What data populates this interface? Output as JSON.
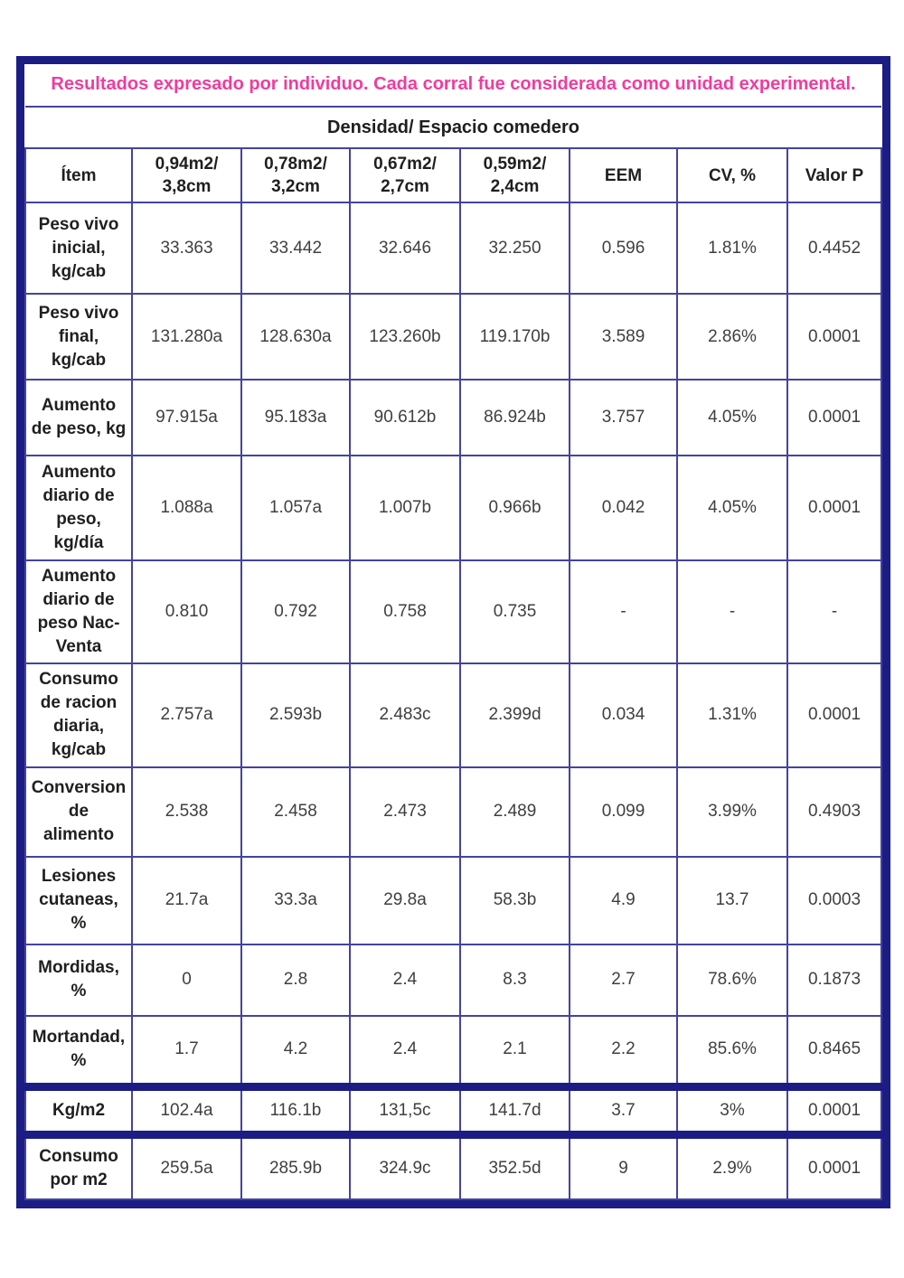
{
  "title": "Resultados expresado por individuo. Cada corral fue considerada como unidad experimental.",
  "group_header": "Densidad/ Espacio comedero",
  "columns": [
    "Ítem",
    "0,94m2/\n3,8cm",
    "0,78m2/\n3,2cm",
    "0,67m2/\n2,7cm",
    "0,59m2/\n2,4cm",
    "EEM",
    "CV, %",
    "Valor P"
  ],
  "rows": [
    {
      "label": "Peso vivo\ninicial,\nkg/cab",
      "values": [
        "33.363",
        "33.442",
        "32.646",
        "32.250",
        "0.596",
        "1.81%",
        "0.4452"
      ],
      "section": false
    },
    {
      "label": "Peso vivo\nfinal,\nkg/cab",
      "values": [
        "131.280a",
        "128.630a",
        "123.260b",
        "119.170b",
        "3.589",
        "2.86%",
        "0.0001"
      ],
      "section": false
    },
    {
      "label": "Aumento\nde peso, kg",
      "values": [
        "97.915a",
        "95.183a",
        "90.612b",
        "86.924b",
        "3.757",
        "4.05%",
        "0.0001"
      ],
      "section": false
    },
    {
      "label": "Aumento\ndiario de\npeso,\nkg/día",
      "values": [
        "1.088a",
        "1.057a",
        "1.007b",
        "0.966b",
        "0.042",
        "4.05%",
        "0.0001"
      ],
      "section": false
    },
    {
      "label": "Aumento\ndiario de\npeso Nac-\nVenta",
      "values": [
        "0.810",
        "0.792",
        "0.758",
        "0.735",
        "-",
        "-",
        "-"
      ],
      "section": false
    },
    {
      "label": "Consumo\nde racion\ndiaria,\nkg/cab",
      "values": [
        "2.757a",
        "2.593b",
        "2.483c",
        "2.399d",
        "0.034",
        "1.31%",
        "0.0001"
      ],
      "section": false
    },
    {
      "label": "Conversion\nde\nalimento",
      "values": [
        "2.538",
        "2.458",
        "2.473",
        "2.489",
        "0.099",
        "3.99%",
        "0.4903"
      ],
      "section": false
    },
    {
      "label": "Lesiones\ncutaneas,\n%",
      "values": [
        "21.7a",
        "33.3a",
        "29.8a",
        "58.3b",
        "4.9",
        "13.7",
        "0.0003"
      ],
      "section": false
    },
    {
      "label": "Mordidas,\n%",
      "values": [
        "0",
        "2.8",
        "2.4",
        "8.3",
        "2.7",
        "78.6%",
        "0.1873"
      ],
      "section": false
    },
    {
      "label": "Mortandad,\n%",
      "values": [
        "1.7",
        "4.2",
        "2.4",
        "2.1",
        "2.2",
        "85.6%",
        "0.8465"
      ],
      "section": false
    },
    {
      "label": "Kg/m2",
      "values": [
        "102.4a",
        "116.1b",
        "131,5c",
        "141.7d",
        "3.7",
        "3%",
        "0.0001"
      ],
      "section": true
    },
    {
      "label": "Consumo\npor m2",
      "values": [
        "259.5a",
        "285.9b",
        "324.9c",
        "352.5d",
        "9",
        "2.9%",
        "0.0001"
      ],
      "section": true
    }
  ],
  "colors": {
    "border_navy": "#1c1c85",
    "grid_blue": "#4343a0",
    "title_pink": "#f03c9e",
    "label_text": "#1f1f1f",
    "value_text": "#3f3f3f"
  }
}
